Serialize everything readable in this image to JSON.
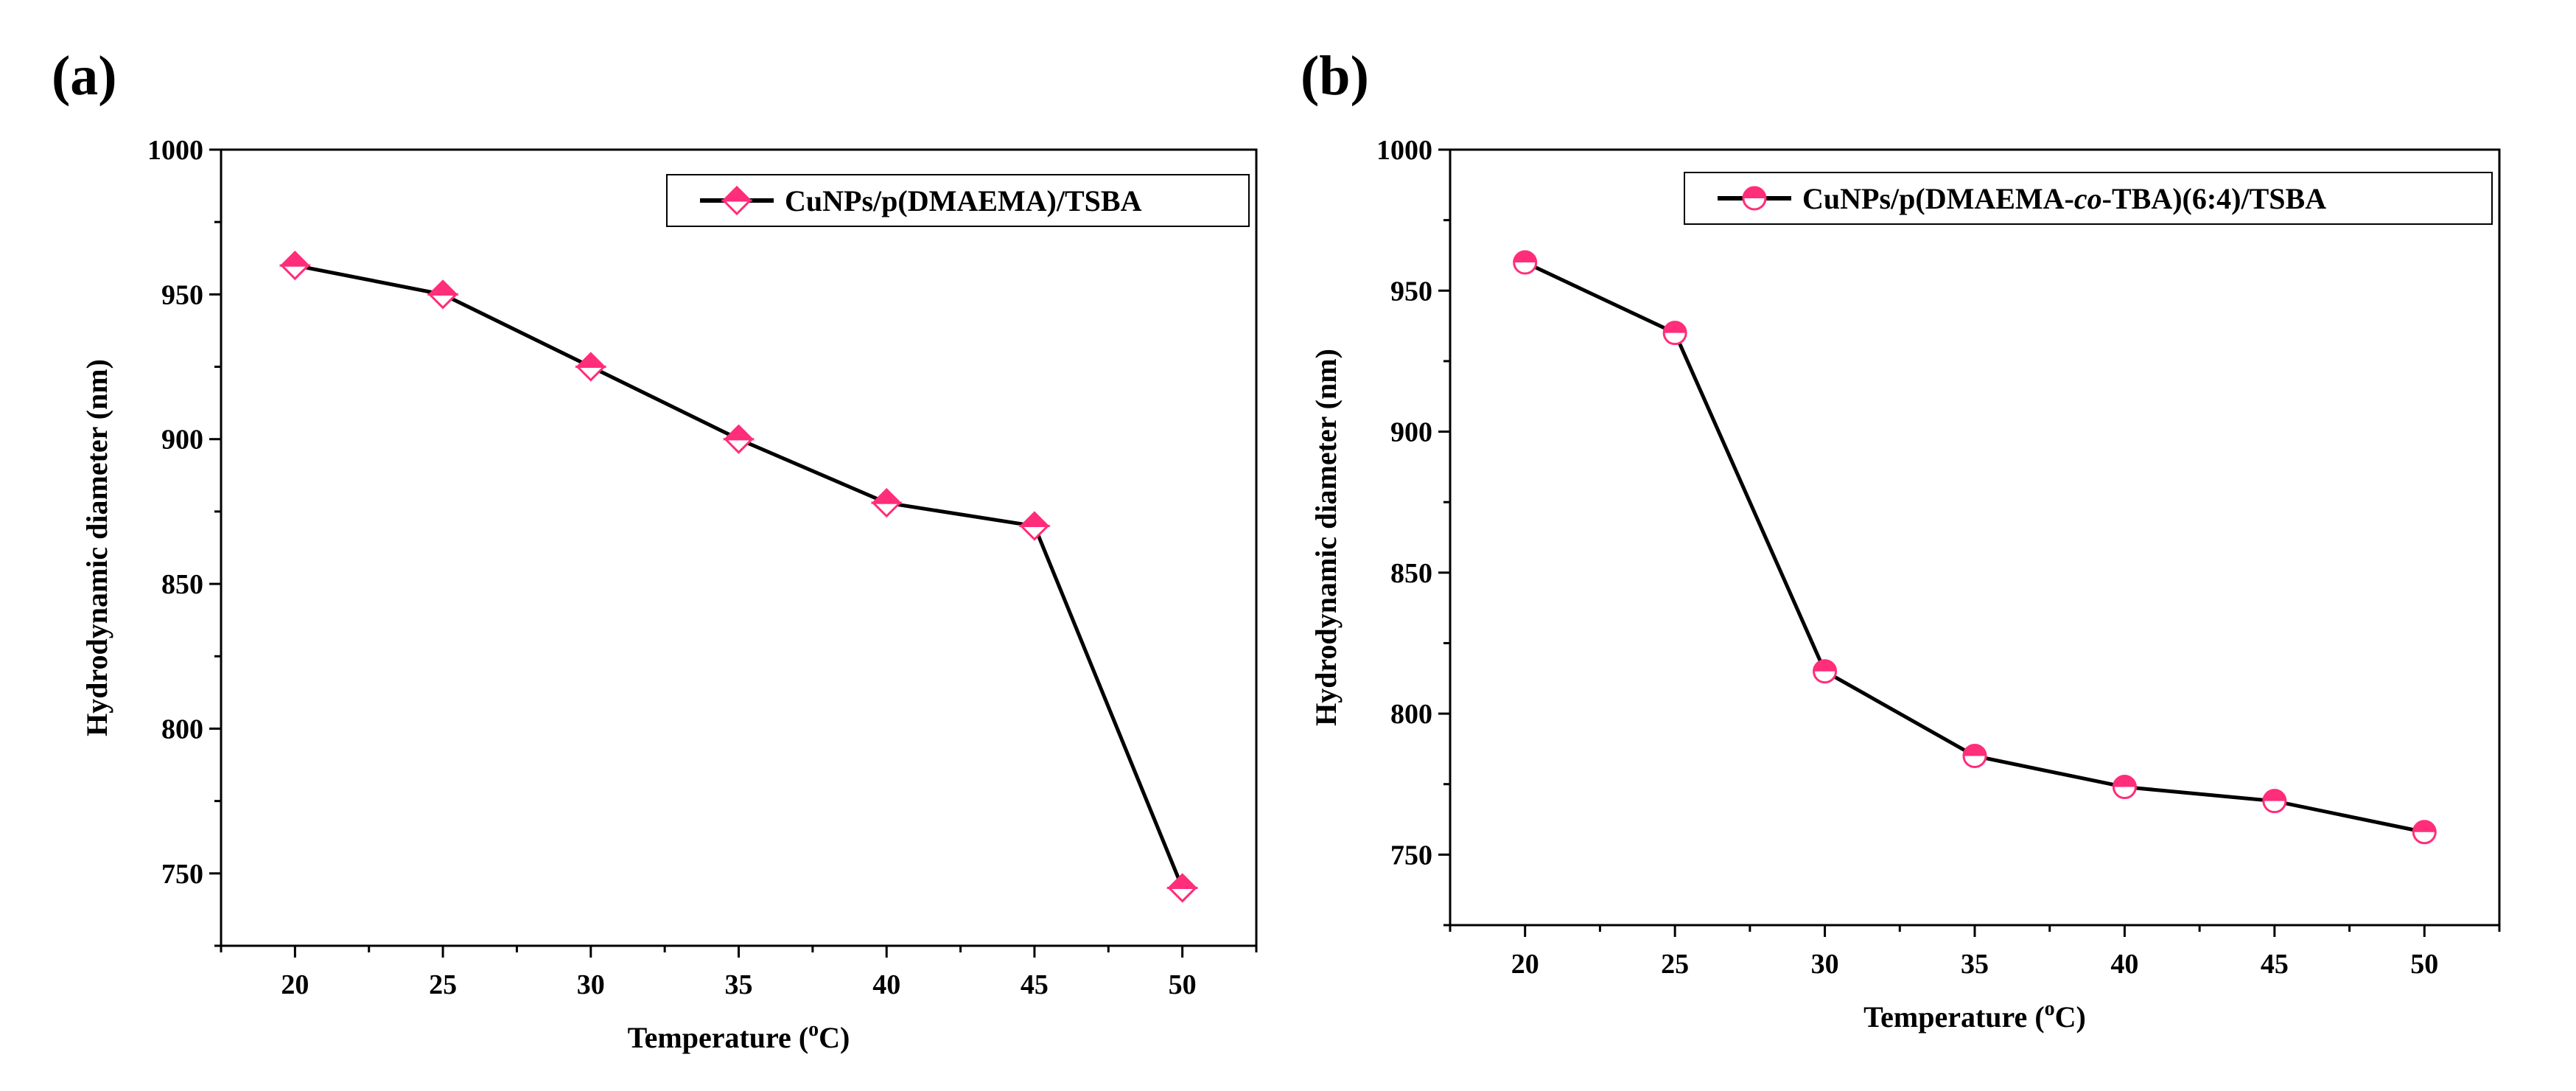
{
  "chart_data": [
    {
      "panel": "(a)",
      "type": "line",
      "xlabel_main": "Temperature (",
      "xlabel_sup": "o",
      "xlabel_end": "C)",
      "ylabel": "Hydrodynamic diameter (nm)",
      "x": [
        20,
        25,
        30,
        35,
        40,
        45,
        50
      ],
      "xlim": [
        17.5,
        52.5
      ],
      "ylim": [
        725,
        1000
      ],
      "xticks": [
        20,
        25,
        30,
        35,
        40,
        45,
        50
      ],
      "yticks": [
        750,
        800,
        850,
        900,
        950,
        1000
      ],
      "legend_position": "top-right",
      "series": [
        {
          "name": "CuNPs/p(DMAEMA)/TSBA",
          "marker": "diamond",
          "color": "#ff2d7a",
          "values": [
            960,
            950,
            925,
            900,
            878,
            870,
            745
          ]
        }
      ]
    },
    {
      "panel": "(b)",
      "type": "line",
      "xlabel_main": "Temperature (",
      "xlabel_sup": "o",
      "xlabel_end": "C)",
      "ylabel": "Hydrodynamic diameter (nm)",
      "x": [
        20,
        25,
        30,
        35,
        40,
        45,
        50
      ],
      "xlim": [
        17.5,
        52.5
      ],
      "ylim": [
        725,
        1000
      ],
      "xticks": [
        20,
        25,
        30,
        35,
        40,
        45,
        50
      ],
      "yticks": [
        750,
        800,
        850,
        900,
        950,
        1000
      ],
      "legend_position": "top-right",
      "series": [
        {
          "name": "CuNPs/p(DMAEMA-co-TBA)(6:4)/TSBA",
          "name_parts": [
            "CuNPs/p(DMAEMA-",
            "co",
            "-TBA)(6:4)/TSBA"
          ],
          "marker": "circle",
          "color": "#ff2d7a",
          "values": [
            960,
            935,
            815,
            785,
            774,
            769,
            758
          ]
        }
      ]
    }
  ]
}
